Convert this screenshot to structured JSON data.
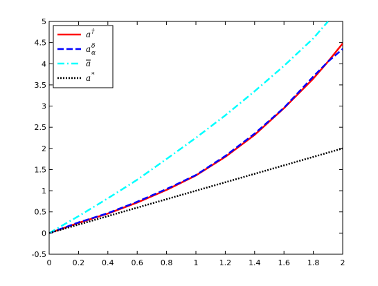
{
  "chart_data": {
    "type": "line",
    "title": "",
    "xlabel": "",
    "ylabel": "",
    "xlim": [
      0,
      2
    ],
    "ylim": [
      -0.5,
      5
    ],
    "xticks": [
      0,
      0.2,
      0.4,
      0.6,
      0.8,
      1,
      1.2,
      1.4,
      1.6,
      1.8,
      2
    ],
    "xtick_labels": [
      "0",
      "0.2",
      "0.4",
      "0.6",
      "0.8",
      "1",
      "1.2",
      "1.4",
      "1.6",
      "1.8",
      "2"
    ],
    "yticks": [
      -0.5,
      0,
      0.5,
      1,
      1.5,
      2,
      2.5,
      3,
      3.5,
      4,
      4.5,
      5
    ],
    "ytick_labels": [
      "-0.5",
      "0",
      "0.5",
      "1",
      "1.5",
      "2",
      "2.5",
      "3",
      "3.5",
      "4",
      "4.5",
      "5"
    ],
    "grid": false,
    "legend_position": "top-left",
    "series": [
      {
        "base": "a",
        "sup": "†",
        "sub": "",
        "color": "#ff0000",
        "style": "solid",
        "x": [
          0,
          0.2,
          0.4,
          0.6,
          0.8,
          1.0,
          1.2,
          1.4,
          1.6,
          1.8,
          1.9,
          2.0
        ],
        "y": [
          0,
          0.24,
          0.46,
          0.72,
          1.02,
          1.36,
          1.8,
          2.32,
          2.95,
          3.65,
          4.05,
          4.48
        ]
      },
      {
        "base": "a",
        "sup": "δ",
        "sub": "α",
        "color": "#0000ff",
        "style": "dashed",
        "x": [
          0,
          0.2,
          0.4,
          0.6,
          0.8,
          1.0,
          1.2,
          1.4,
          1.6,
          1.8,
          1.9,
          2.0
        ],
        "y": [
          0,
          0.25,
          0.47,
          0.74,
          1.04,
          1.37,
          1.82,
          2.35,
          2.96,
          3.7,
          4.05,
          4.35
        ]
      },
      {
        "base": "a",
        "sup": "",
        "sub": "",
        "overline": true,
        "color": "#00ffff",
        "style": "dashdot",
        "x": [
          0,
          0.2,
          0.4,
          0.6,
          0.8,
          1.0,
          1.2,
          1.4,
          1.6,
          1.8,
          1.9
        ],
        "y": [
          0,
          0.4,
          0.82,
          1.26,
          1.75,
          2.25,
          2.78,
          3.35,
          3.95,
          4.6,
          5.0
        ]
      },
      {
        "base": "a",
        "sup": "*",
        "sub": "",
        "color": "#000000",
        "style": "dotted",
        "x": [
          0,
          0.5,
          1.0,
          1.5,
          2.0
        ],
        "y": [
          0,
          0.5,
          1.0,
          1.5,
          2.0
        ]
      }
    ]
  }
}
